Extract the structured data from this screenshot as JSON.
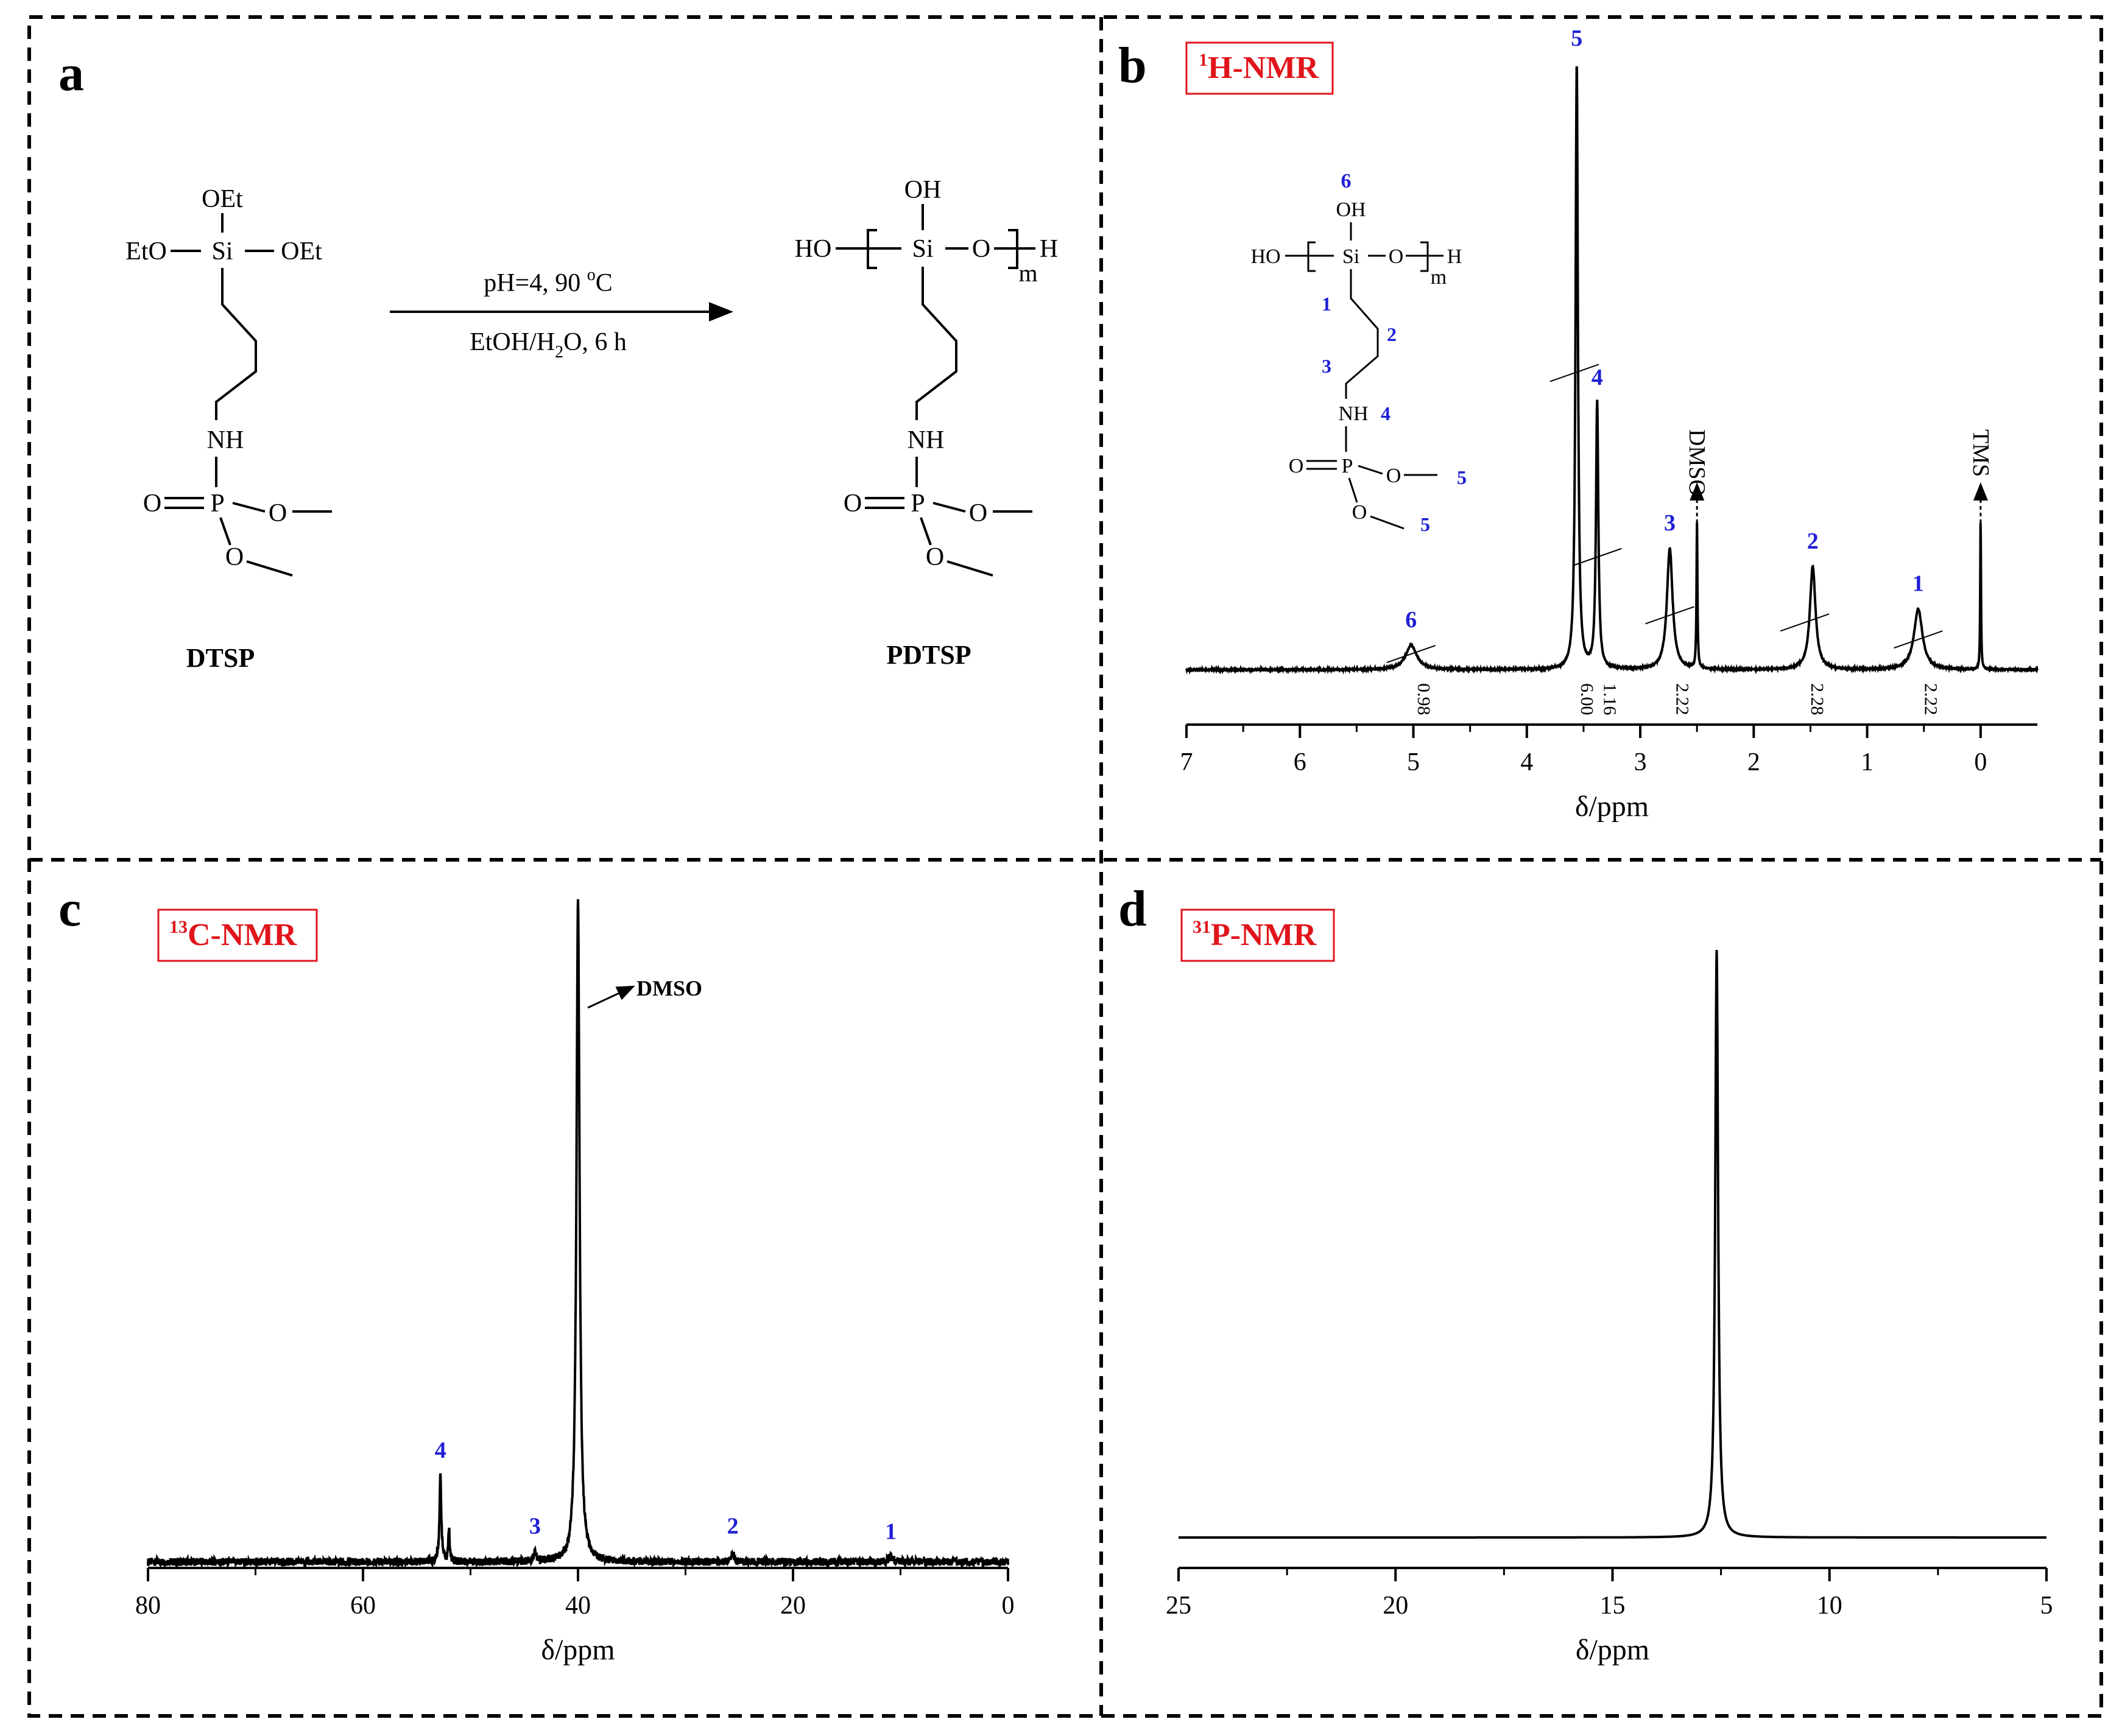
{
  "panels": {
    "a": {
      "letter": "a",
      "reactant": {
        "name": "DTSP",
        "labels": [
          "OEt",
          "EtO",
          "Si",
          "OEt",
          "NH",
          "O",
          "P",
          "O",
          "O"
        ]
      },
      "product": {
        "name": "PDTSP",
        "labels": [
          "OH",
          "HO",
          "Si",
          "O",
          "H",
          "m",
          "NH",
          "O",
          "P",
          "O",
          "O"
        ]
      },
      "conditions": {
        "line1_pre": "pH=4, 90 ",
        "line1_deg": "o",
        "line1_post": "C",
        "line2_pre": "EtOH/H",
        "line2_sub": "2",
        "line2_post": "O, 6 h"
      }
    },
    "b": {
      "letter": "b",
      "badge_sup": "1",
      "badge_text": "H-NMR",
      "structure_labels": [
        "6",
        "OH",
        "HO",
        "Si",
        "O",
        "H",
        "m",
        "1",
        "2",
        "3",
        "NH",
        "4",
        "O",
        "P",
        "O",
        "5",
        "O",
        "5"
      ],
      "solvent_label": "DMSO",
      "reference_label": "TMS"
    },
    "c": {
      "letter": "c",
      "badge_sup": "13",
      "badge_text": "C-NMR",
      "solvent_label": "DMSO"
    },
    "d": {
      "letter": "d",
      "badge_sup": "31",
      "badge_text": "P-NMR"
    }
  },
  "chart_data": [
    {
      "panel": "b",
      "type": "line",
      "nucleus": "1H",
      "xlabel": "δ/ppm",
      "xlim": [
        7,
        -0.5
      ],
      "x_reversed": true,
      "xticks": [
        7,
        6,
        5,
        4,
        3,
        2,
        1,
        0
      ],
      "peaks": [
        {
          "label": "6",
          "shift": 5.02,
          "height": 0.04,
          "width": 0.12
        },
        {
          "label": "5",
          "shift": 3.56,
          "height": 1.0,
          "width": 0.025
        },
        {
          "label": "4",
          "shift": 3.38,
          "height": 0.44,
          "width": 0.025
        },
        {
          "label": "3",
          "shift": 2.74,
          "height": 0.2,
          "width": 0.06
        },
        {
          "label": "",
          "shift": 2.5,
          "height": 0.24,
          "width": 0.01
        },
        {
          "label": "2",
          "shift": 1.48,
          "height": 0.17,
          "width": 0.06
        },
        {
          "label": "1",
          "shift": 0.55,
          "height": 0.1,
          "width": 0.09
        },
        {
          "label": "",
          "shift": 0.0,
          "height": 0.25,
          "width": 0.008
        }
      ],
      "integrals": [
        {
          "shift": 5.02,
          "value": "0.98"
        },
        {
          "shift": 3.58,
          "value": "6.00"
        },
        {
          "shift": 3.38,
          "value": "1.16"
        },
        {
          "shift": 2.74,
          "value": "2.22"
        },
        {
          "shift": 1.55,
          "value": "2.28"
        },
        {
          "shift": 0.55,
          "value": "2.22"
        }
      ]
    },
    {
      "panel": "c",
      "type": "line",
      "nucleus": "13C",
      "xlabel": "δ/ppm",
      "xlim": [
        80,
        0
      ],
      "x_reversed": true,
      "xticks": [
        80,
        60,
        40,
        20,
        0
      ],
      "peaks": [
        {
          "label": "4",
          "shift": 52.8,
          "height": 0.13,
          "width": 0.2
        },
        {
          "label": "",
          "shift": 52.0,
          "height": 0.05,
          "width": 0.15
        },
        {
          "label": "3",
          "shift": 44.0,
          "height": 0.015,
          "width": 0.3
        },
        {
          "label": "",
          "shift": 40.0,
          "height": 1.0,
          "width": 0.35
        },
        {
          "label": "2",
          "shift": 25.6,
          "height": 0.015,
          "width": 0.3
        },
        {
          "label": "1",
          "shift": 10.9,
          "height": 0.007,
          "width": 0.5
        }
      ]
    },
    {
      "panel": "d",
      "type": "line",
      "nucleus": "31P",
      "xlabel": "δ/ppm",
      "xlim": [
        25,
        5
      ],
      "x_reversed": true,
      "xticks": [
        25,
        20,
        15,
        10,
        5
      ],
      "peaks": [
        {
          "label": "",
          "shift": 12.6,
          "height": 1.0,
          "width": 0.08
        }
      ]
    }
  ]
}
